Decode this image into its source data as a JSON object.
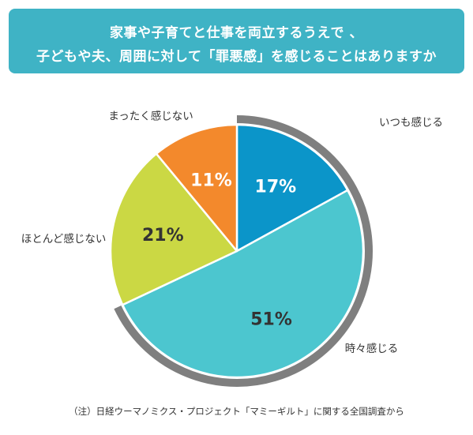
{
  "title": {
    "line1": "家事や子育てと仕事を両立するうえで 、",
    "line2": "子どもや夫、周囲に対して「罪悪感」を感じることはありますか"
  },
  "chart_data": {
    "type": "pie",
    "title": "家事や子育てと仕事を両立するうえで 、子どもや夫、周囲に対して「罪悪感」を感じることはありますか",
    "categories": [
      "いつも感じる",
      "時々感じる",
      "ほとんど感じない",
      "まったく感じない"
    ],
    "values": [
      17,
      51,
      21,
      11
    ],
    "value_labels": [
      "17%",
      "51%",
      "21%",
      "11%"
    ],
    "colors": [
      "#0b95c9",
      "#4cc6cf",
      "#cbd844",
      "#f3892c"
    ],
    "label_colors": [
      "#ffffff",
      "#333333",
      "#333333",
      "#ffffff"
    ],
    "highlight": [
      "いつも感じる",
      "時々感じる"
    ],
    "highlight_color": "#7f7f7f",
    "start": "12 o'clock, clockwise"
  },
  "footnote": "（注）日経ウーマノミクス・プロジェクト「マミーギルト」に関する全国調査から"
}
